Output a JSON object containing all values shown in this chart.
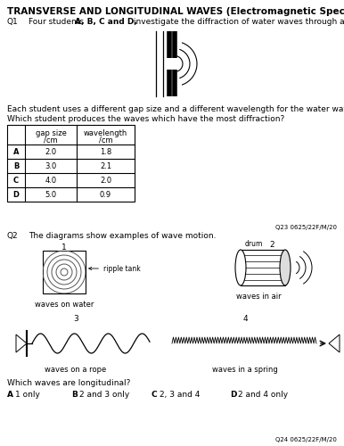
{
  "title": "TRANSVERSE AND LONGITUDINAL WAVES (Electromagnetic Spectrum & Sound)",
  "q1_label": "Q1",
  "q1_text": "Four students ",
  "q1_bold": "A, B, C and D,",
  "q1_text2": " investigate the diffraction of water waves through a gap.",
  "q1_sub1": "Each student uses a different gap size and a different wavelength for the water waves.",
  "q1_sub2": "Which student produces the waves which have the most diffraction?",
  "table_headers_col1": "gap size\n/cm",
  "table_headers_col2": "wavelength\n/cm",
  "table_rows": [
    [
      "A",
      "2.0",
      "1.8"
    ],
    [
      "B",
      "3.0",
      "2.1"
    ],
    [
      "C",
      "4.0",
      "2.0"
    ],
    [
      "D",
      "5.0",
      "0.9"
    ]
  ],
  "q23_ref": "Q23 0625/22F/M/20",
  "q2_label": "Q2",
  "q2_text": "The diagrams show examples of wave motion.",
  "diagram1_label": "1",
  "diagram1_caption": "waves on water",
  "diagram1_annot": "ripple tank",
  "diagram2_label": "2",
  "diagram2_caption": "waves in air",
  "diagram2_annot": "drum",
  "diagram3_label": "3",
  "diagram3_caption": "waves on a rope",
  "diagram4_label": "4",
  "diagram4_caption": "waves in a spring",
  "q2_question": "Which waves are longitudinal?",
  "q2_options": [
    [
      "A",
      "1 only"
    ],
    [
      "B",
      "2 and 3 only"
    ],
    [
      "C",
      "2, 3 and 4"
    ],
    [
      "D",
      "2 and 4 only"
    ]
  ],
  "q24_ref": "Q24 0625/22F/M/20",
  "bg_color": "#ffffff",
  "text_color": "#000000"
}
